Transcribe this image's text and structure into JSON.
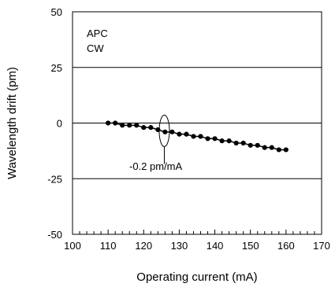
{
  "chart_data": {
    "type": "scatter",
    "title": "",
    "xlabel": "Operating current (mA)",
    "ylabel": "Wavelength drift (pm)",
    "xlim": [
      100,
      170
    ],
    "ylim": [
      -50,
      50
    ],
    "x_ticks": [
      100,
      110,
      120,
      130,
      140,
      150,
      160,
      170
    ],
    "y_ticks": [
      50,
      25,
      0,
      -25,
      -50
    ],
    "x_tick_labels": [
      "100",
      "110",
      "120",
      "130",
      "140",
      "150",
      "160",
      "170"
    ],
    "y_tick_labels": [
      "50",
      "25",
      "0",
      "-25",
      "-50"
    ],
    "x_minor_step": 2,
    "gridlines_y": [
      25,
      0,
      -25
    ],
    "series": [
      {
        "x": [
          110,
          112,
          114,
          116,
          118,
          120,
          122,
          124,
          126,
          128,
          130,
          132,
          134,
          136,
          138,
          140,
          142,
          144,
          146,
          148,
          150,
          152,
          154,
          156,
          158,
          160
        ],
        "y": [
          0,
          0,
          -1,
          -1,
          -1,
          -2,
          -2,
          -3,
          -4,
          -4,
          -5,
          -5,
          -6,
          -6,
          -7,
          -7,
          -8,
          -8,
          -9,
          -9,
          -10,
          -10,
          -11,
          -11,
          -12,
          -12
        ],
        "color": "#000000"
      }
    ],
    "annotations": {
      "legend_line1": "APC",
      "legend_line2": "CW",
      "slope_label": "-0.2 pm/mA",
      "ellipse_center": [
        125.8,
        -3.5
      ]
    }
  }
}
